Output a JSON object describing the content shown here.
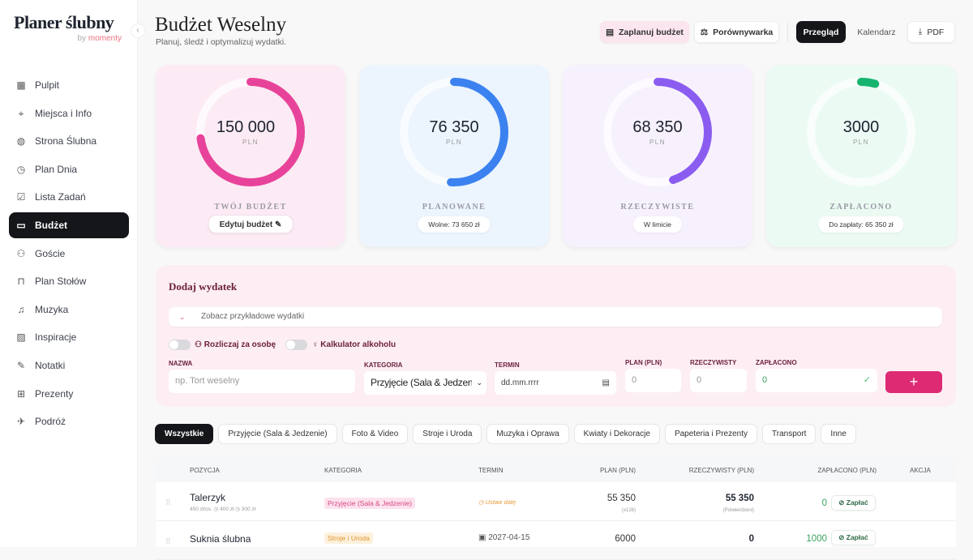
{
  "sidebar": {
    "logo": "Planer ślubny",
    "logo_by": "by",
    "logo_brand": "momenty",
    "collapse_icon": "‹",
    "items": [
      {
        "label": "Pulpit",
        "icon": "▦"
      },
      {
        "label": "Miejsca i Info",
        "icon": "⌖"
      },
      {
        "label": "Strona Ślubna",
        "icon": "◍"
      },
      {
        "label": "Plan Dnia",
        "icon": "◷"
      },
      {
        "label": "Lista Zadań",
        "icon": "☑"
      },
      {
        "label": "Budżet",
        "icon": "▭"
      },
      {
        "label": "Goście",
        "icon": "⚇"
      },
      {
        "label": "Plan Stołów",
        "icon": "⊓"
      },
      {
        "label": "Muzyka",
        "icon": "♫"
      },
      {
        "label": "Inspiracje",
        "icon": "▨"
      },
      {
        "label": "Notatki",
        "icon": "✎"
      },
      {
        "label": "Prezenty",
        "icon": "⊞"
      },
      {
        "label": "Podróż",
        "icon": "✈"
      }
    ]
  },
  "header": {
    "title": "Budżet Weselny",
    "subtitle": "Planuj, śledź i optymalizuj wydatki.",
    "plan_budget": "Zaplanuj budżet",
    "compare": "Porównywarka",
    "overview": "Przegląd",
    "calendar": "Kalendarz",
    "pdf": "PDF"
  },
  "cards": [
    {
      "value": "150 000",
      "unit": "PLN",
      "label": "TWÓJ BUDŻET",
      "pill": "Edytuj budżet ✎",
      "fraction": 0.73,
      "color": "#e8439a",
      "bg": "#fcebf4"
    },
    {
      "value": "76 350",
      "unit": "PLN",
      "label": "PLANOWANE",
      "pill": "Wolne: 73 650 zł",
      "fraction": 0.51,
      "color": "#3b82f0",
      "bg": "#ecf4fe"
    },
    {
      "value": "68 350",
      "unit": "PLN",
      "label": "RZECZYWISTE",
      "pill": "W limicie",
      "fraction": 0.45,
      "color": "#8b5cf0",
      "bg": "#f7f1fd"
    },
    {
      "value": "3000",
      "unit": "PLN",
      "label": "ZAPŁACONO",
      "pill": "Do zapłaty: 65 350 zł",
      "fraction": 0.045,
      "color": "#16b36f",
      "bg": "#ebfbf3"
    }
  ],
  "form": {
    "title": "Dodaj wydatek",
    "examples": "Zobacz przykładowe wydatki",
    "per_person": "Rozliczaj za osobę",
    "alcohol": "Kalkulator alkoholu",
    "name_label": "NAZWA",
    "name_placeholder": "np. Tort weselny",
    "category_label": "KATEGORIA",
    "category_value": "Przyjęcie (Sala & Jedzen",
    "date_label": "TERMIN",
    "date_placeholder": "dd.mm.rrrr",
    "plan_label": "PLAN (PLN)",
    "plan_value": "0",
    "actual_label": "RZECZYWISTY",
    "actual_value": "0",
    "paid_label": "ZAPŁACONO",
    "paid_value": "0",
    "add": "+"
  },
  "tabs": [
    "Wszystkie",
    "Przyjęcie (Sala & Jedzenie)",
    "Foto & Video",
    "Stroje i Uroda",
    "Muzyka i Oprawa",
    "Kwiaty i Dekoracje",
    "Papeteria i Prezenty",
    "Transport",
    "Inne"
  ],
  "table": {
    "headers": [
      "POZYCJA",
      "KATEGORIA",
      "TERMIN",
      "PLAN (PLN)",
      "RZECZYWISTY (PLN)",
      "ZAPŁACONO (PLN)",
      "AKCJA"
    ],
    "rows": [
      {
        "name": "Talerzyk",
        "meta": "450 zł/os.  ◷ 400 zł  ◷ 300 zł",
        "category": "Przyjęcie (Sala & Jedzenie)",
        "date": "◷ Ustaw datę",
        "plan": "55 350",
        "plan_note": "(x126)",
        "actual": "55 350",
        "actual_note": "(Potwierdzeni)",
        "paid": "0",
        "pay": "⊘ Zapłać"
      },
      {
        "name": "Suknia ślubna",
        "meta": "",
        "category": "Stroje i Uroda",
        "date": "▣ 2027-04-15",
        "plan": "6000",
        "plan_note": "",
        "actual": "0",
        "actual_note": "",
        "paid": "1000",
        "pay": "⊘ Zapłać"
      }
    ]
  }
}
